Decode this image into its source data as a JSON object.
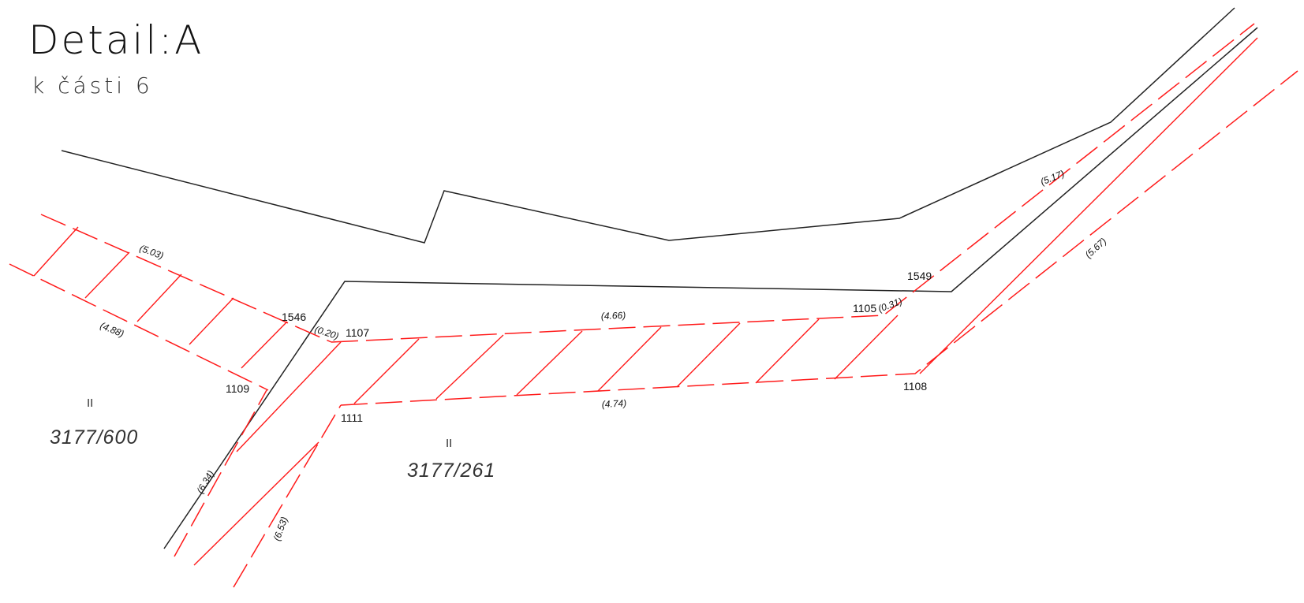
{
  "title": "Detail:A",
  "subtitle": "k části 6",
  "colors": {
    "line_black": "#222222",
    "line_red": "#ff1a1a"
  },
  "points": {
    "p1546": "1546",
    "p1107": "1107",
    "p1109": "1109",
    "p1111": "1111",
    "p1105": "1105",
    "p1549": "1549",
    "p1108": "1108"
  },
  "dimensions": {
    "d503": "(5.03)",
    "d488": "(4.88)",
    "d020": "(0.20)",
    "d466": "(4.66)",
    "d031": "(0.31)",
    "d474": "(4.74)",
    "d517": "(5.17)",
    "d567": "(5.67)",
    "d634": "(6.34)",
    "d653": "(6.53)"
  },
  "parcels": {
    "left": {
      "number": "3177/600",
      "mark": "II"
    },
    "middle": {
      "number": "3177/261",
      "mark": "II"
    }
  }
}
